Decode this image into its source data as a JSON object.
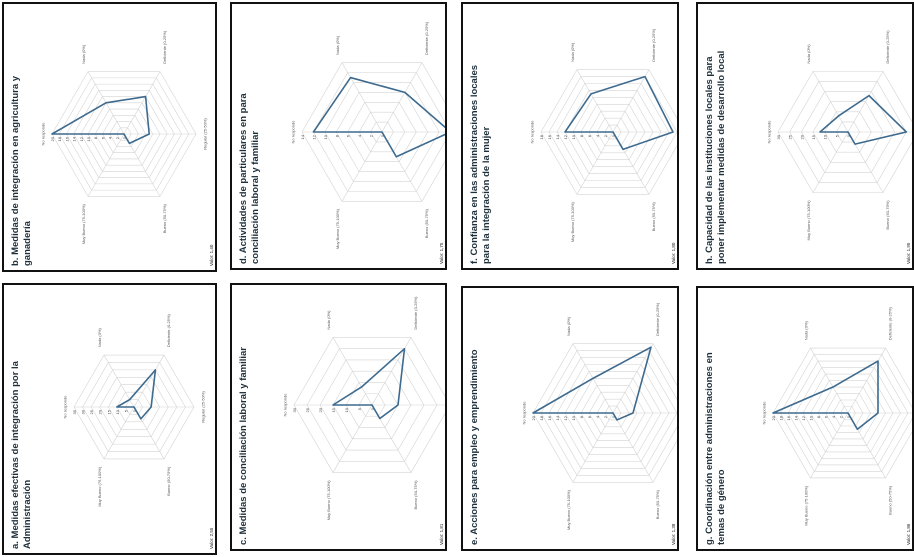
{
  "chart_data": [
    {
      "id": "a",
      "type": "radar",
      "title": "a. Medidas efectivas de integración por la Administración",
      "axes": [
        "No responde",
        "Nada (0%)",
        "Deficiente (0-25%)",
        "Regular (25-50%)",
        "Bueno (50-75%)",
        "Muy Bueno (75-100%)"
      ],
      "max": 35,
      "ticks": [
        "35",
        "30",
        "25",
        "20",
        "15",
        "10",
        "5",
        "0"
      ],
      "values": [
        10,
        5,
        25,
        10,
        8,
        0
      ],
      "value_label": "Valor: 2,55"
    },
    {
      "id": "b",
      "type": "radar",
      "title": "b. Medidas de integración en agricultura y ganadería",
      "axes": [
        "No responde",
        "Nada (0%)",
        "Deficiente (0-25%)",
        "Regular (25-50%)",
        "Bueno (50-75%)",
        "Muy Bueno (75-100%)"
      ],
      "max": 20,
      "ticks": [
        "20",
        "18",
        "16",
        "14",
        "12",
        "10",
        "8",
        "6",
        "4",
        "2",
        "0"
      ],
      "values": [
        20,
        10,
        12,
        7,
        3,
        0
      ],
      "value_label": "Valor: 1,40"
    },
    {
      "id": "c",
      "type": "radar",
      "title": "c. Medidas de conciliación laboral y familiar",
      "axes": [
        "No responde",
        "Nada (0%)",
        "Deficiente (0-25%)",
        "Regular (25-50%)",
        "Bueno (50-75%)",
        "Muy Bueno (75-100%)"
      ],
      "max": 30,
      "ticks": [
        "30",
        "25",
        "20",
        "15",
        "10",
        "5",
        "0"
      ],
      "values": [
        15,
        8,
        25,
        10,
        6,
        0
      ],
      "value_label": "Valor: 1,81"
    },
    {
      "id": "d",
      "type": "radar",
      "title": "d. Actividades de particulares en para conciliación laboral y familiar",
      "axes": [
        "No responde",
        "Nada (0%)",
        "Deficiente (0-25%)",
        "Regular (25-50%)",
        "Bueno (50-75%)",
        "Muy Bueno (75-100%)"
      ],
      "max": 14,
      "ticks": [
        "14",
        "12",
        "10",
        "8",
        "6",
        "4",
        "2",
        "0"
      ],
      "values": [
        12,
        11,
        8,
        12,
        5,
        0
      ],
      "value_label": "Valor: 1,75"
    },
    {
      "id": "e",
      "type": "radar",
      "title": "e. Acciones para empleo y emprendimiento",
      "axes": [
        "No responde",
        "Nada (0%)",
        "Deficiente (0-25%)",
        "Regular (25-50%)",
        "Bueno (50-75%)",
        "Muy Bueno (75-100%)"
      ],
      "max": 20,
      "ticks": [
        "20",
        "18",
        "16",
        "14",
        "12",
        "10",
        "8",
        "6",
        "4",
        "2",
        "0"
      ],
      "values": [
        20,
        10,
        19,
        5,
        2,
        0
      ],
      "value_label": "Valor: 1,38"
    },
    {
      "id": "f",
      "type": "radar",
      "title": "f. Confianza en las administraciones locales para la integración de la mujer",
      "axes": [
        "No responde",
        "Nada (0%)",
        "Deficiente (0-25%)",
        "Regular (25-50%)",
        "Bueno (50-75%)",
        "Muy Bueno (75-100%)"
      ],
      "max": 18,
      "ticks": [
        "18",
        "16",
        "14",
        "12",
        "10",
        "8",
        "6",
        "4",
        "2",
        "0"
      ],
      "values": [
        12,
        11,
        16,
        15,
        5,
        0
      ],
      "value_label": "Valor: 1,80"
    },
    {
      "id": "g",
      "type": "radar",
      "title": "g. Coordinación entre administraciones en temas de género",
      "axes": [
        "No responde",
        "Nada (0%)",
        "Deficiente (0-25%)",
        "Regular (25-50%)",
        "Bueno (50-75%)",
        "Muy Bueno (75-100%)"
      ],
      "max": 20,
      "ticks": [
        "20",
        "18",
        "16",
        "14",
        "12",
        "10",
        "8",
        "6",
        "4",
        "2",
        "0"
      ],
      "values": [
        20,
        8,
        16,
        8,
        5,
        0
      ],
      "value_label": "Valor: 1,86"
    },
    {
      "id": "h",
      "type": "radar",
      "title": "h. Capacidad de las instituciones locales para poner implementar medidas de desarrollo local",
      "axes": [
        "No responde",
        "Nada (0%)",
        "Deficiente (0-25%)",
        "Regular (25-50%)",
        "Bueno (50-75%)",
        "Muy Bueno (75-100%)"
      ],
      "max": 30,
      "ticks": [
        "30",
        "25",
        "20",
        "15",
        "10",
        "5",
        "0"
      ],
      "values": [
        12,
        8,
        18,
        25,
        6,
        0
      ],
      "value_label": "Valor: 1,95"
    }
  ],
  "colors": {
    "series": "#3d6a8e",
    "grid": "#d4d4d4",
    "frame": "#111111"
  }
}
